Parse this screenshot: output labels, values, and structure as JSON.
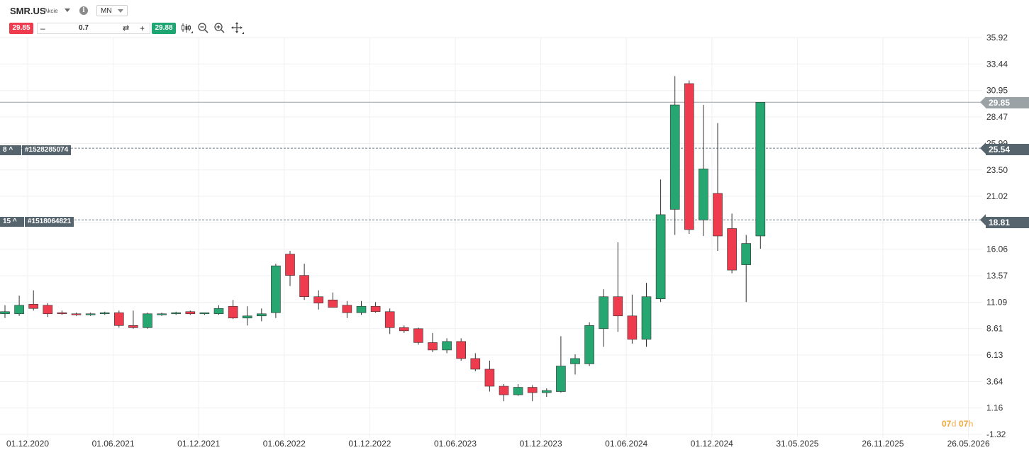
{
  "header": {
    "symbol": "SMR.US",
    "asset_type": "Akcie",
    "info_icon": "info-icon",
    "timeframe": "MN"
  },
  "trade": {
    "sell_price": "29.85",
    "volume": "0.7",
    "buy_price": "29.88",
    "minus_label": "–",
    "plus_label": "+",
    "swap_icon": "swap-icon"
  },
  "tools": [
    "candlestick-type-icon",
    "zoom-out-icon",
    "zoom-in-icon",
    "crosshair-icon"
  ],
  "orders": [
    {
      "count_label": "8 ^",
      "id_label": "#1528285074",
      "price": 25.54,
      "price_label": "25.54"
    },
    {
      "count_label": "15 ^",
      "id_label": "#1518064821",
      "price": 18.81,
      "price_label": "18.81"
    }
  ],
  "current_price": {
    "value": 29.85,
    "label": "29.85"
  },
  "countdown": {
    "days": "07",
    "days_unit": "d",
    "hours": "07",
    "hours_unit": "h"
  },
  "colors": {
    "up": "#26a670",
    "down": "#ee3b4d",
    "order_tag": "#56646e",
    "current_tag": "#9aa2a6",
    "grid": "#eef0f2"
  },
  "chart_data": {
    "type": "candlestick",
    "interval": "1 month",
    "y_ticks": [
      "35.92",
      "33.44",
      "30.95",
      "28.47",
      "25.99",
      "23.50",
      "21.02",
      "18.54",
      "16.06",
      "13.57",
      "11.09",
      "8.61",
      "6.13",
      "3.64",
      "1.16",
      "-1.32"
    ],
    "x_ticks": [
      "01.12.2020",
      "01.06.2021",
      "01.12.2021",
      "01.06.2022",
      "01.12.2022",
      "01.06.2023",
      "01.12.2023",
      "01.06.2024",
      "01.12.2024",
      "31.05.2025",
      "26.11.2025",
      "26.05.2026"
    ],
    "ylim": [
      -1.32,
      35.92
    ],
    "candles": [
      {
        "date": "2020-12",
        "o": 10.0,
        "h": 10.8,
        "l": 9.6,
        "c": 10.2
      },
      {
        "date": "2021-01",
        "o": 10.0,
        "h": 11.7,
        "l": 9.8,
        "c": 10.8
      },
      {
        "date": "2021-02",
        "o": 10.9,
        "h": 12.2,
        "l": 10.3,
        "c": 10.5
      },
      {
        "date": "2021-03",
        "o": 10.8,
        "h": 11.0,
        "l": 9.7,
        "c": 10.0
      },
      {
        "date": "2021-04",
        "o": 10.1,
        "h": 10.3,
        "l": 9.9,
        "c": 10.0
      },
      {
        "date": "2021-05",
        "o": 10.0,
        "h": 10.1,
        "l": 9.8,
        "c": 9.9
      },
      {
        "date": "2021-06",
        "o": 9.9,
        "h": 10.1,
        "l": 9.8,
        "c": 10.0
      },
      {
        "date": "2021-07",
        "o": 10.0,
        "h": 10.2,
        "l": 9.9,
        "c": 10.1
      },
      {
        "date": "2021-08",
        "o": 10.1,
        "h": 10.3,
        "l": 8.7,
        "c": 8.9
      },
      {
        "date": "2021-09",
        "o": 8.9,
        "h": 10.3,
        "l": 8.6,
        "c": 8.7
      },
      {
        "date": "2021-10",
        "o": 8.7,
        "h": 10.1,
        "l": 8.6,
        "c": 10.0
      },
      {
        "date": "2021-11",
        "o": 9.9,
        "h": 10.1,
        "l": 9.8,
        "c": 10.0
      },
      {
        "date": "2021-12",
        "o": 10.0,
        "h": 10.2,
        "l": 9.9,
        "c": 10.1
      },
      {
        "date": "2022-01",
        "o": 10.2,
        "h": 10.3,
        "l": 9.9,
        "c": 10.0
      },
      {
        "date": "2022-02",
        "o": 10.0,
        "h": 10.1,
        "l": 9.9,
        "c": 10.1
      },
      {
        "date": "2022-03",
        "o": 10.0,
        "h": 10.8,
        "l": 9.9,
        "c": 10.5
      },
      {
        "date": "2022-04",
        "o": 10.7,
        "h": 11.3,
        "l": 9.5,
        "c": 9.6
      },
      {
        "date": "2022-05",
        "o": 9.6,
        "h": 10.7,
        "l": 8.9,
        "c": 9.8
      },
      {
        "date": "2022-06",
        "o": 9.8,
        "h": 10.5,
        "l": 9.3,
        "c": 10.0
      },
      {
        "date": "2022-07",
        "o": 10.1,
        "h": 14.7,
        "l": 9.6,
        "c": 14.5
      },
      {
        "date": "2022-08",
        "o": 15.6,
        "h": 15.9,
        "l": 12.6,
        "c": 13.6
      },
      {
        "date": "2022-09",
        "o": 13.6,
        "h": 14.7,
        "l": 11.3,
        "c": 11.6
      },
      {
        "date": "2022-10",
        "o": 11.6,
        "h": 12.2,
        "l": 10.4,
        "c": 11.0
      },
      {
        "date": "2022-11",
        "o": 11.3,
        "h": 12.0,
        "l": 10.6,
        "c": 10.6
      },
      {
        "date": "2022-12",
        "o": 10.8,
        "h": 11.2,
        "l": 9.6,
        "c": 10.1
      },
      {
        "date": "2023-01",
        "o": 10.1,
        "h": 11.2,
        "l": 9.9,
        "c": 10.7
      },
      {
        "date": "2023-02",
        "o": 10.7,
        "h": 11.1,
        "l": 10.1,
        "c": 10.2
      },
      {
        "date": "2023-03",
        "o": 10.2,
        "h": 10.5,
        "l": 8.1,
        "c": 8.7
      },
      {
        "date": "2023-04",
        "o": 8.7,
        "h": 8.9,
        "l": 8.2,
        "c": 8.4
      },
      {
        "date": "2023-05",
        "o": 8.6,
        "h": 8.7,
        "l": 7.1,
        "c": 7.3
      },
      {
        "date": "2023-06",
        "o": 7.3,
        "h": 8.2,
        "l": 6.4,
        "c": 6.6
      },
      {
        "date": "2023-07",
        "o": 6.6,
        "h": 7.7,
        "l": 6.3,
        "c": 7.4
      },
      {
        "date": "2023-08",
        "o": 7.4,
        "h": 7.7,
        "l": 5.6,
        "c": 5.8
      },
      {
        "date": "2023-09",
        "o": 5.8,
        "h": 6.3,
        "l": 4.6,
        "c": 4.8
      },
      {
        "date": "2023-10",
        "o": 4.8,
        "h": 5.6,
        "l": 2.7,
        "c": 3.2
      },
      {
        "date": "2023-11",
        "o": 3.2,
        "h": 3.4,
        "l": 1.8,
        "c": 2.4
      },
      {
        "date": "2023-12",
        "o": 2.4,
        "h": 3.4,
        "l": 2.3,
        "c": 3.1
      },
      {
        "date": "2024-01",
        "o": 3.1,
        "h": 3.3,
        "l": 1.8,
        "c": 2.6
      },
      {
        "date": "2024-02",
        "o": 2.6,
        "h": 3.0,
        "l": 2.2,
        "c": 2.8
      },
      {
        "date": "2024-03",
        "o": 2.7,
        "h": 7.9,
        "l": 2.6,
        "c": 5.1
      },
      {
        "date": "2024-04",
        "o": 5.3,
        "h": 6.2,
        "l": 4.3,
        "c": 5.8
      },
      {
        "date": "2024-05",
        "o": 5.3,
        "h": 9.2,
        "l": 5.1,
        "c": 8.9
      },
      {
        "date": "2024-06",
        "o": 8.6,
        "h": 12.3,
        "l": 6.9,
        "c": 11.6
      },
      {
        "date": "2024-07",
        "o": 11.6,
        "h": 16.7,
        "l": 8.3,
        "c": 9.8
      },
      {
        "date": "2024-08",
        "o": 9.8,
        "h": 11.8,
        "l": 7.2,
        "c": 7.6
      },
      {
        "date": "2024-09",
        "o": 7.6,
        "h": 12.9,
        "l": 6.9,
        "c": 11.6
      },
      {
        "date": "2024-10",
        "o": 11.4,
        "h": 22.6,
        "l": 11.1,
        "c": 19.3
      },
      {
        "date": "2024-11",
        "o": 19.8,
        "h": 32.3,
        "l": 17.4,
        "c": 29.6
      },
      {
        "date": "2024-12",
        "o": 31.6,
        "h": 31.9,
        "l": 17.5,
        "c": 17.9
      },
      {
        "date": "2025-01",
        "o": 18.8,
        "h": 29.6,
        "l": 17.3,
        "c": 23.6
      },
      {
        "date": "2025-02",
        "o": 21.3,
        "h": 27.9,
        "l": 15.9,
        "c": 17.3
      },
      {
        "date": "2025-03",
        "o": 18.0,
        "h": 19.4,
        "l": 13.8,
        "c": 14.1
      },
      {
        "date": "2025-04",
        "o": 14.6,
        "h": 17.4,
        "l": 11.1,
        "c": 16.6
      },
      {
        "date": "2025-05",
        "o": 17.3,
        "h": 29.85,
        "l": 16.1,
        "c": 29.85
      }
    ]
  }
}
